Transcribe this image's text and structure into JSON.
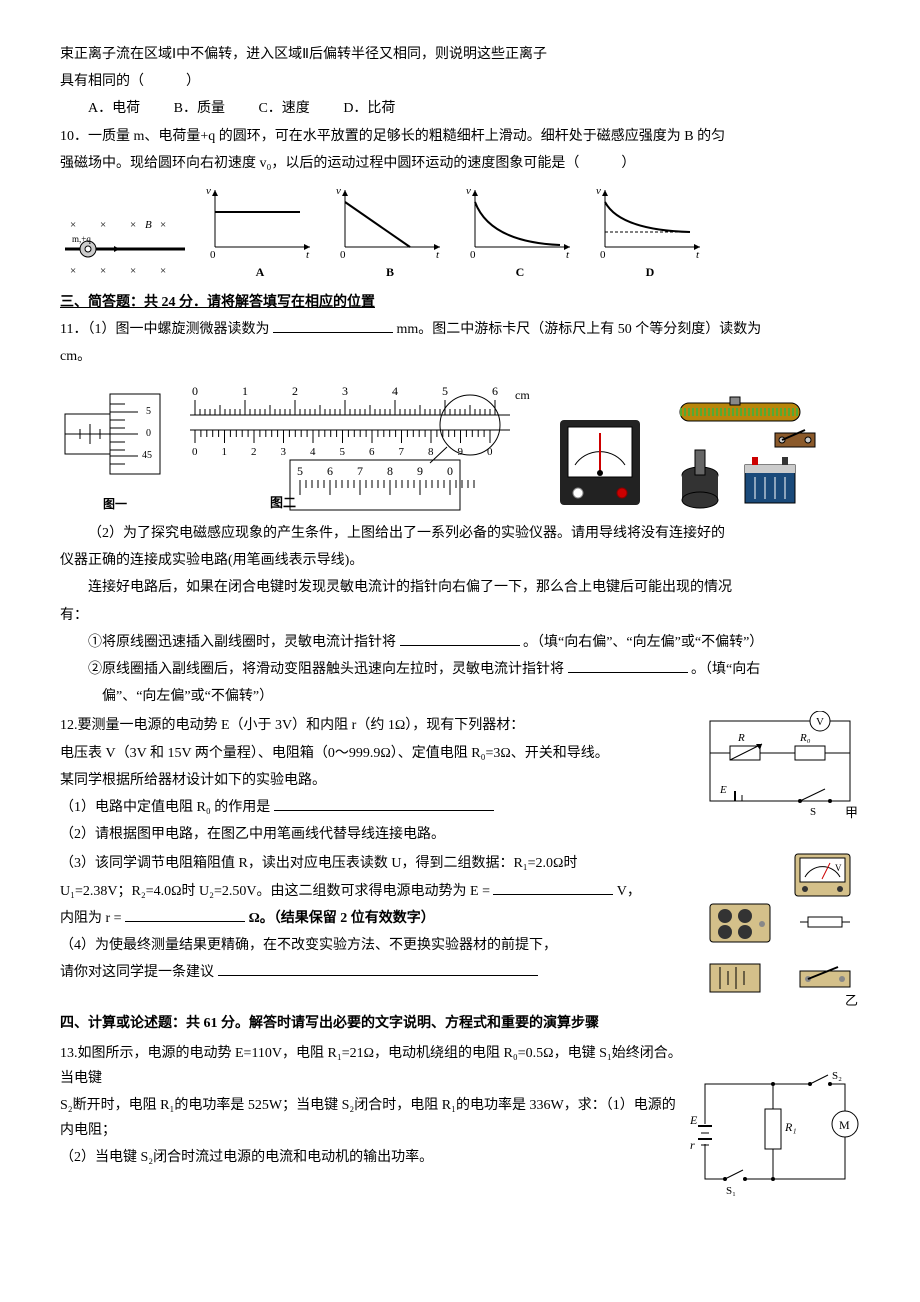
{
  "q9_tail": {
    "line1": "束正离子流在区域Ⅰ中不偏转，进入区域Ⅱ后偏转半径又相同，则说明这些正离子",
    "line2": "具有相同的（　　　）",
    "optA": "A．电荷",
    "optB": "B．质量",
    "optC": "C．速度",
    "optD": "D．比荷"
  },
  "q10": {
    "stem1": "10．一质量 m、电荷量+q 的圆环，可在水平放置的足够长的粗糙细杆上滑动。细杆处于磁感应强度为 B 的匀",
    "stem2": "强磁场中。现给圆环向右初速度 v₀，以后的运动过程中圆环运动的速度图象可能是（　　　）",
    "labels": {
      "A": "A",
      "B": "B",
      "C": "C",
      "D": "D"
    },
    "axis_y": "v",
    "axis_x": "t",
    "rod_diag": {
      "xsym": "×",
      "Bsym": "B"
    }
  },
  "section3": "三、简答题：共 24 分．请将解答填写在相应的位置",
  "q11": {
    "p1a": "11．（1）图一中螺旋测微器读数为",
    "p1b": "mm。图二中游标卡尺（游标尺上有 50 个等分刻度）读数为",
    "p1c": "cm。",
    "fig1_label": "图一",
    "fig2_label": "图二",
    "micrometer": {
      "ticks": [
        "5",
        "0",
        "45"
      ]
    },
    "caliper": {
      "main_numbers": [
        "0",
        "1",
        "2",
        "3",
        "4",
        "5",
        "6"
      ],
      "main_unit": "cm",
      "vernier_numbers": [
        "0",
        "1",
        "2",
        "3",
        "4",
        "5",
        "6",
        "7",
        "8",
        "9",
        "0"
      ],
      "zoom_numbers": [
        "5",
        "6",
        "7",
        "8",
        "9",
        "0"
      ]
    },
    "p2a": "（2）为了探究电磁感应现象的产生条件，上图给出了一系列必备的实验仪器。请用导线将没有连接好的",
    "p2b": "仪器正确的连接成实验电路(用笔画线表示导线)。",
    "p3a": "连接好电路后，如果在闭合电键时发现灵敏电流计的指针向右偏了一下，那么合上电键后可能出现的情况",
    "p3b": "有：",
    "i1a": "①将原线圈迅速插入副线圈时，灵敏电流计指针将",
    "i1b": "。（填“向右偏”、“向左偏”或“不偏转”）",
    "i2a": "②原线圈插入副线圈后，将滑动变阻器触头迅速向左拉时，灵敏电流计指针将",
    "i2b": "。（填“向右",
    "i2c": "偏”、“向左偏”或“不偏转”）"
  },
  "q12": {
    "l1": "12.要测量一电源的电动势 E（小于 3V）和内阻 r（约 1Ω），现有下列器材：",
    "l2": "电压表 V（3V 和 15V 两个量程）、电阻箱（0～999.9Ω）、定值电阻 R₀=3Ω、开关和导线。",
    "l3": "某同学根据所给器材设计如下的实验电路。",
    "l4": "（1）电路中定值电阻 R₀ 的作用是",
    "l5": "（2）请根据图甲电路，在图乙中用笔画线代替导线连接电路。",
    "l6a": "（3）该同学调节电阻箱阻值 R，读出对应电压表读数 U，得到二组数据：R₁=2.0Ω时",
    "l6b": "U₁=2.38V；R₂=4.0Ω时 U₂=2.50V。由这二组数可求得电源电动势为 E =",
    "l6c": "V，",
    "l7a": "内阻为 r =",
    "l7b": "Ω。（结果保留 2 位有效数字）",
    "l8": "（4）为使最终测量结果更精确，在不改变实验方法、不更换实验器材的前提下，",
    "l9": "请你对这同学提一条建议",
    "circuit": {
      "V": "V",
      "R": "R",
      "R0": "R₀",
      "E": "E",
      "S": "S",
      "jia": "甲",
      "yi": "乙"
    }
  },
  "section4": "四、计算或论述题：共 61 分。解答时请写出必要的文字说明、方程式和重要的演算步骤",
  "q13": {
    "l1": "13.如图所示，电源的电动势 E=110V，电阻 R₁=21Ω，电动机绕组的电阻 R₀=0.5Ω，电键 S₁始终闭合。当电键",
    "l2": "S₂断开时，电阻 R₁的电功率是 525W；当电键 S₂闭合时，电阻 R₁的电功率是 336W，求：（1）电源的内电阻；",
    "l3": "（2）当电键 S₂闭合时流过电源的电流和电动机的输出功率。",
    "circuit": {
      "E": "E",
      "r": "r",
      "R1": "R₁",
      "S1": "S₁",
      "S2": "S₂",
      "M": "M"
    }
  },
  "style": {
    "ink": "#000000",
    "gray": "#999999",
    "axis_stroke": 1.2
  }
}
